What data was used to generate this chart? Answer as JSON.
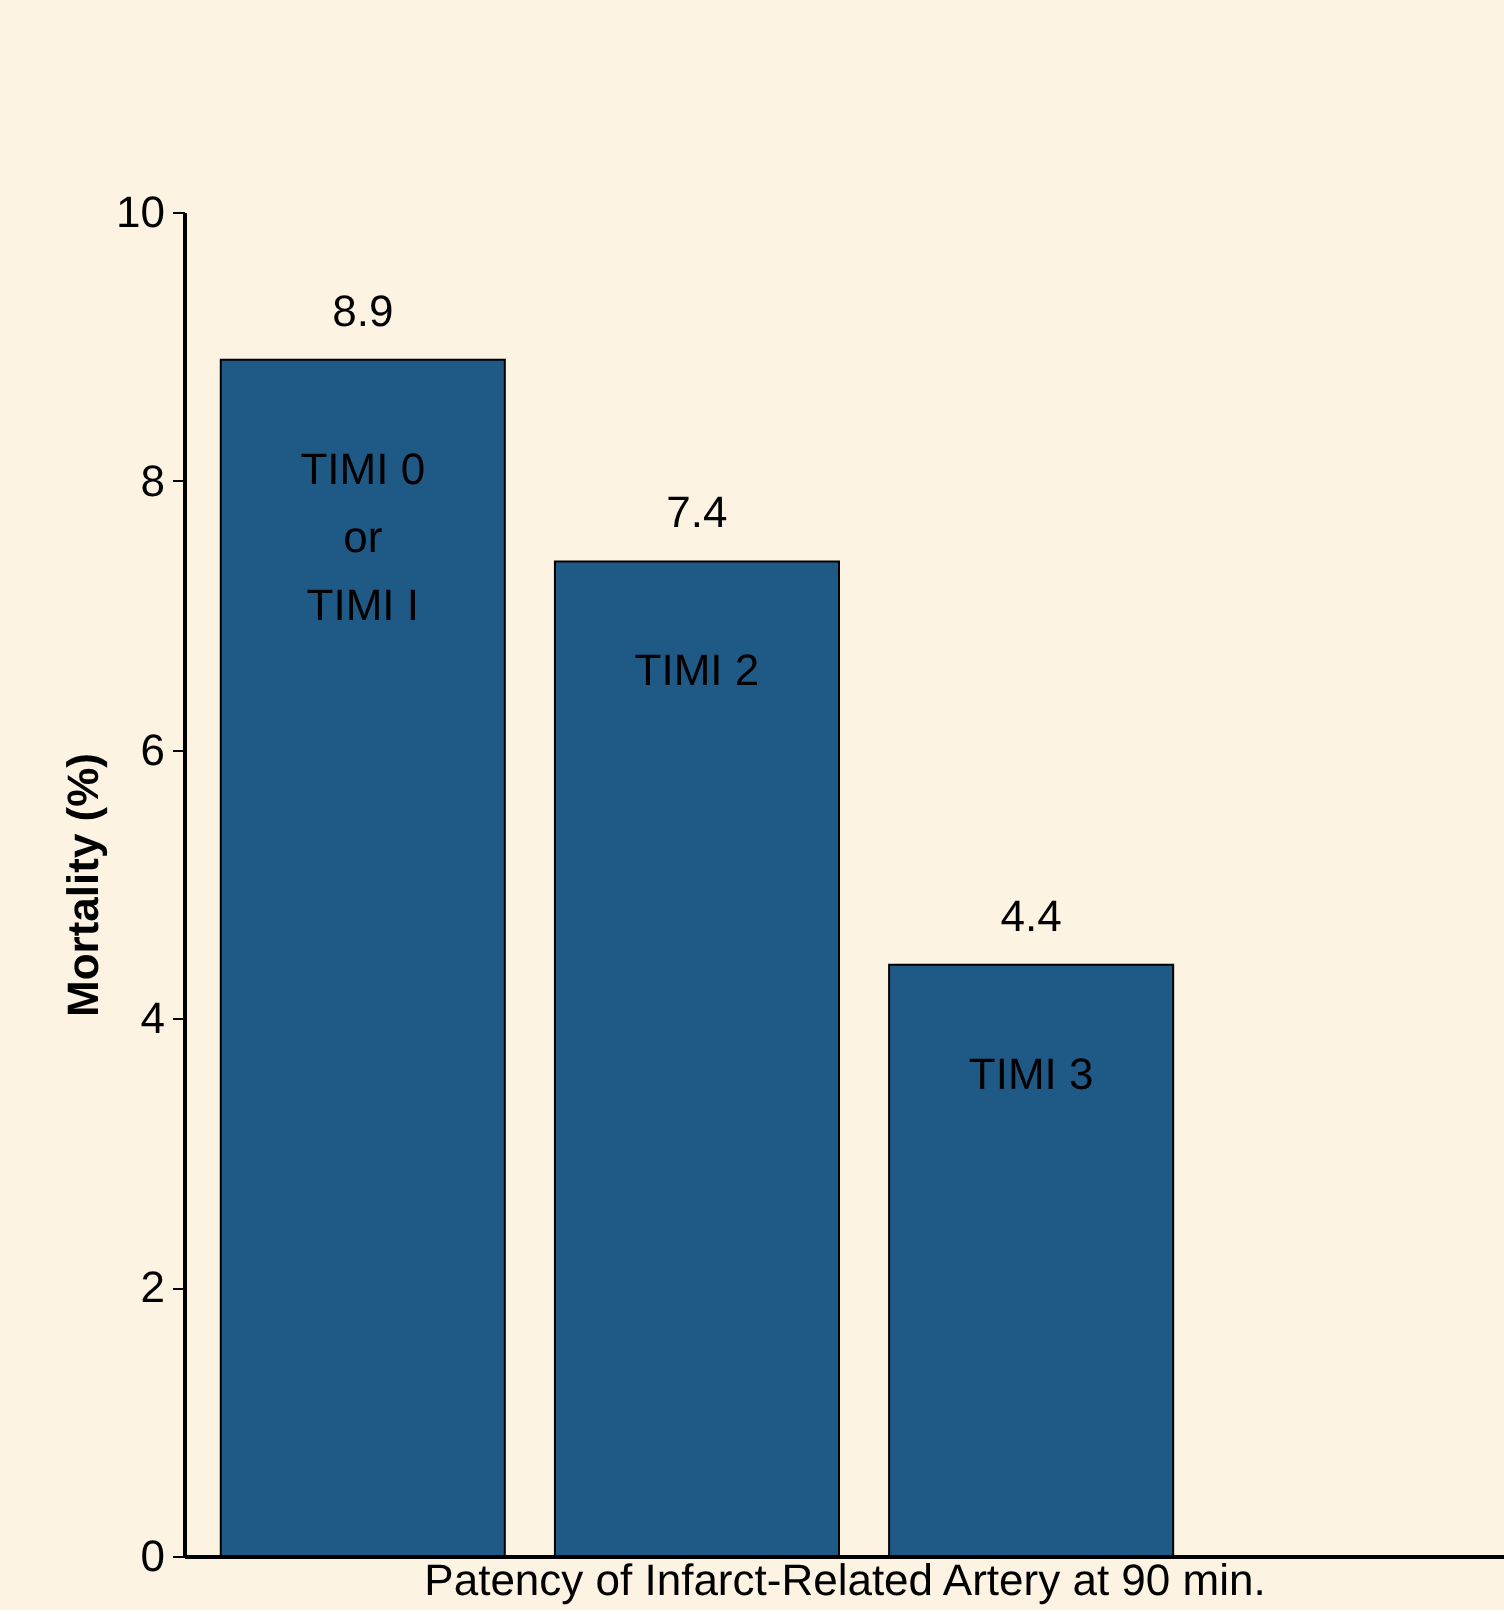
{
  "chart_data": {
    "type": "bar",
    "categories": [
      "TIMI 0\nor\nTIMI I",
      "TIMI 2",
      "TIMI 3"
    ],
    "values": [
      8.9,
      7.4,
      4.4
    ],
    "color": "#1f5a86",
    "xlabel": "Patency of Infarct-Related Artery at 90 min.",
    "ylabel": "Mortality (%)",
    "ylim": [
      0,
      10
    ],
    "yticks": [
      0,
      2,
      4,
      6,
      8,
      10
    ],
    "data_labels": true,
    "grid": false,
    "tick_labels": "y"
  }
}
